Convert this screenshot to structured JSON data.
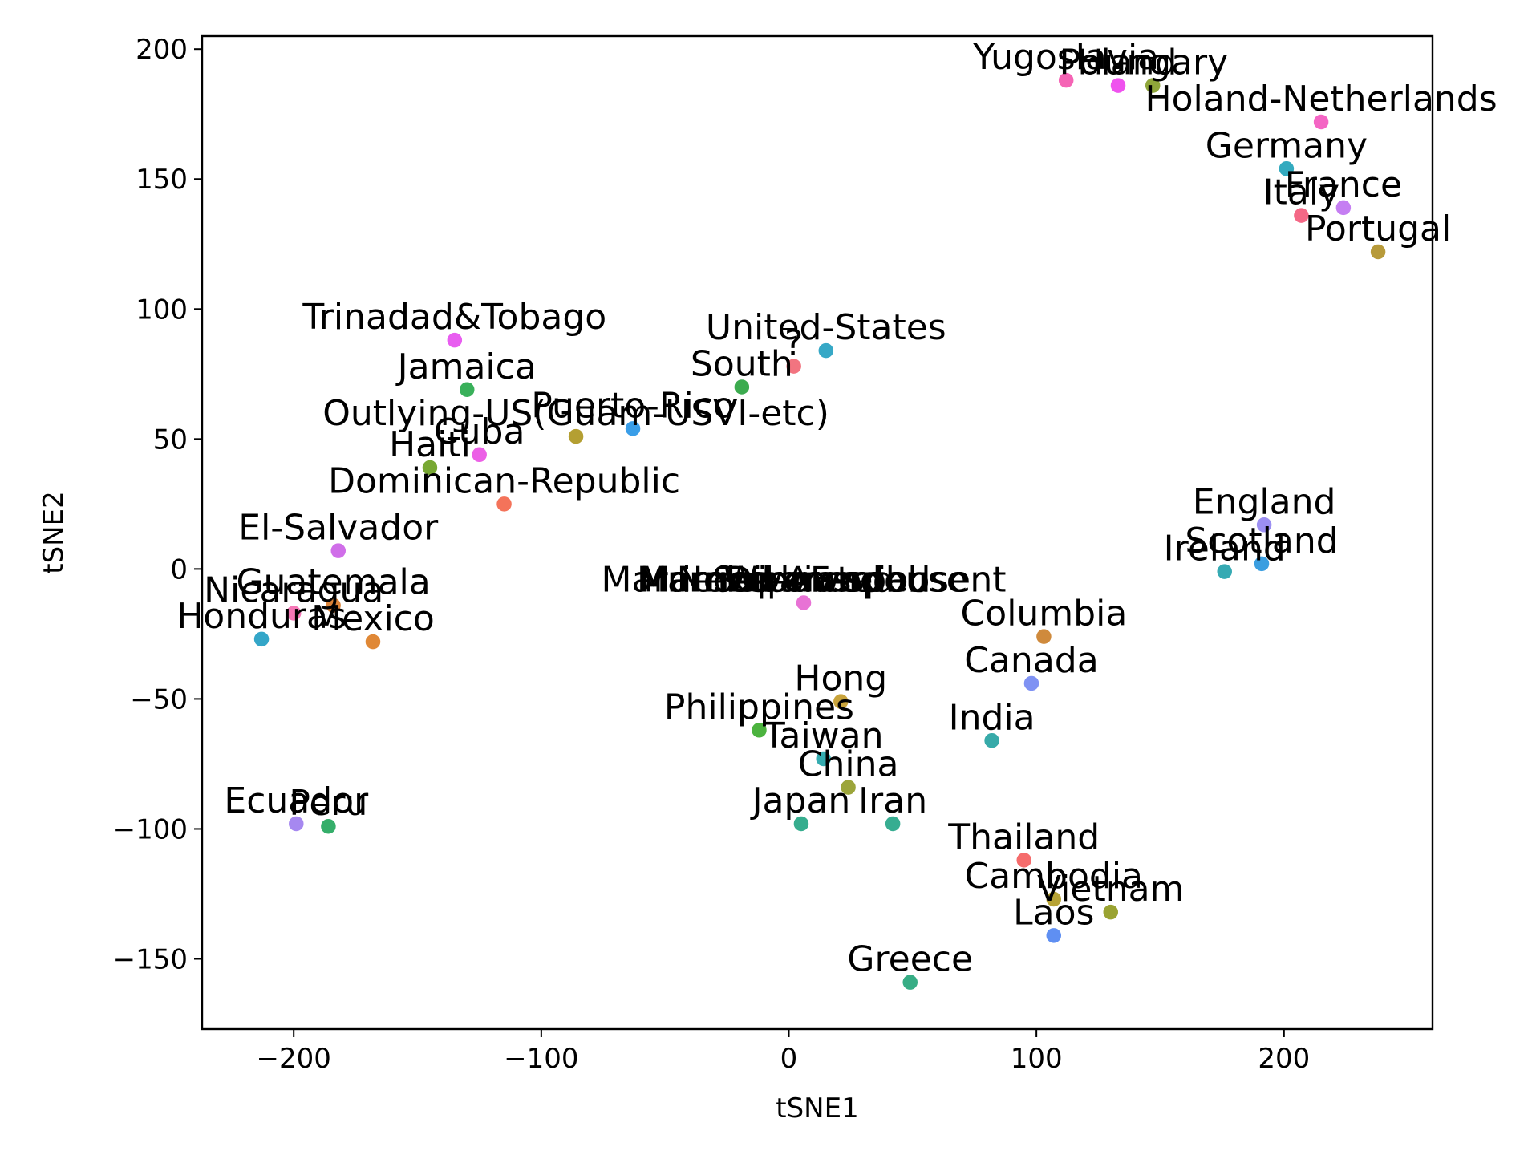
{
  "chart_data": {
    "type": "scatter",
    "xlabel": "tSNE1",
    "ylabel": "tSNE2",
    "xlim": [
      -237,
      260
    ],
    "ylim": [
      -177,
      205
    ],
    "xticks": [
      -200,
      -100,
      0,
      100,
      200
    ],
    "yticks": [
      -150,
      -100,
      -50,
      0,
      50,
      100,
      150,
      200
    ],
    "xtick_labels": [
      "−200",
      "−100",
      "0",
      "100",
      "200"
    ],
    "ytick_labels": [
      "−150",
      "−100",
      "−50",
      "0",
      "50",
      "100",
      "150",
      "200"
    ],
    "grid": false,
    "points": [
      {
        "label": "Yugoslavia",
        "x": 112,
        "y": 188,
        "color": "#f564b5"
      },
      {
        "label": "Poland",
        "x": 133,
        "y": 186,
        "color": "#ef52ee"
      },
      {
        "label": "Hungary",
        "x": 147,
        "y": 186,
        "color": "#8fa63a"
      },
      {
        "label": "Holand-Netherlands",
        "x": 215,
        "y": 172,
        "color": "#f465c4"
      },
      {
        "label": "Germany",
        "x": 201,
        "y": 154,
        "color": "#33aabf"
      },
      {
        "label": "France",
        "x": 224,
        "y": 139,
        "color": "#c57ef2"
      },
      {
        "label": "Italy",
        "x": 207,
        "y": 136,
        "color": "#f46886"
      },
      {
        "label": "Portugal",
        "x": 238,
        "y": 122,
        "color": "#b79a3a"
      },
      {
        "label": "Trinadad&Tobago",
        "x": -135,
        "y": 88,
        "color": "#e85df0"
      },
      {
        "label": "United-States",
        "x": 15,
        "y": 84,
        "color": "#36a8c6"
      },
      {
        "label": "?",
        "x": 2,
        "y": 78,
        "color": "#f27480"
      },
      {
        "label": "South",
        "x": -19,
        "y": 70,
        "color": "#3cab4f"
      },
      {
        "label": "Jamaica",
        "x": -130,
        "y": 69,
        "color": "#39b05a"
      },
      {
        "label": "Outlying-US(Guam-USVI-etc)",
        "x": -86,
        "y": 51,
        "color": "#b49f32"
      },
      {
        "label": "Puerto-Rico",
        "x": -63,
        "y": 54,
        "color": "#3a9ee8"
      },
      {
        "label": "Cuba",
        "x": -125,
        "y": 44,
        "color": "#ec60e6"
      },
      {
        "label": "Haiti",
        "x": -145,
        "y": 39,
        "color": "#78a833"
      },
      {
        "label": "Dominican-Republic",
        "x": -115,
        "y": 25,
        "color": "#f4735a"
      },
      {
        "label": "El-Salvador",
        "x": -182,
        "y": 7,
        "color": "#d06ee9"
      },
      {
        "label": "Guatemala",
        "x": -184,
        "y": -14,
        "color": "#d98136"
      },
      {
        "label": "Nicaragua",
        "x": -200,
        "y": -17,
        "color": "#f577b6"
      },
      {
        "label": "Mexico",
        "x": -168,
        "y": -28,
        "color": "#e08836"
      },
      {
        "label": "Honduras",
        "x": -213,
        "y": -27,
        "color": "#34a6c8"
      },
      {
        "label": "Married-AF-spouse",
        "x": 6,
        "y": -13,
        "color": "#e880d8"
      },
      {
        "label": "Married-civ-spouse",
        "x": 6,
        "y": -13,
        "color": "#e87adb"
      },
      {
        "label": "Married-spouse-absent",
        "x": 6,
        "y": -13,
        "color": "#e975d7"
      },
      {
        "label": "Never-married",
        "x": 6,
        "y": -13,
        "color": "#e878d8"
      },
      {
        "label": "Separated",
        "x": 6,
        "y": -13,
        "color": "#e870d3"
      },
      {
        "label": "Divorced",
        "x": 6,
        "y": -13,
        "color": "#e876d5"
      },
      {
        "label": "Widowed",
        "x": 6,
        "y": -13,
        "color": "#e872d5"
      },
      {
        "label": "Columbia",
        "x": 103,
        "y": -26,
        "color": "#cf8a3c"
      },
      {
        "label": "England",
        "x": 192,
        "y": 17,
        "color": "#9c8ff2"
      },
      {
        "label": "Scotland",
        "x": 191,
        "y": 2,
        "color": "#3b9ee0"
      },
      {
        "label": "Ireland",
        "x": 176,
        "y": -1,
        "color": "#36aab3"
      },
      {
        "label": "Canada",
        "x": 98,
        "y": -44,
        "color": "#7f92f3"
      },
      {
        "label": "Hong",
        "x": 21,
        "y": -51,
        "color": "#c9a43c"
      },
      {
        "label": "India",
        "x": 82,
        "y": -66,
        "color": "#37aaa9"
      },
      {
        "label": "Philippines",
        "x": -12,
        "y": -62,
        "color": "#4cb33f"
      },
      {
        "label": "Taiwan",
        "x": 14,
        "y": -73,
        "color": "#35acb0"
      },
      {
        "label": "China",
        "x": 24,
        "y": -84,
        "color": "#9ca53a"
      },
      {
        "label": "Japan",
        "x": 5,
        "y": -98,
        "color": "#36ad8e"
      },
      {
        "label": "Iran",
        "x": 42,
        "y": -98,
        "color": "#37ad91"
      },
      {
        "label": "Ecuador",
        "x": -199,
        "y": -98,
        "color": "#a688f0"
      },
      {
        "label": "Peru",
        "x": -186,
        "y": -99,
        "color": "#35ae6a"
      },
      {
        "label": "Thailand",
        "x": 95,
        "y": -112,
        "color": "#f56c6c"
      },
      {
        "label": "Cambodia",
        "x": 107,
        "y": -127,
        "color": "#b7a335"
      },
      {
        "label": "Vietnam",
        "x": 130,
        "y": -132,
        "color": "#9aa332"
      },
      {
        "label": "Laos",
        "x": 107,
        "y": -141,
        "color": "#5f8ff2"
      },
      {
        "label": "Greece",
        "x": 49,
        "y": -159,
        "color": "#37ad85"
      }
    ]
  }
}
